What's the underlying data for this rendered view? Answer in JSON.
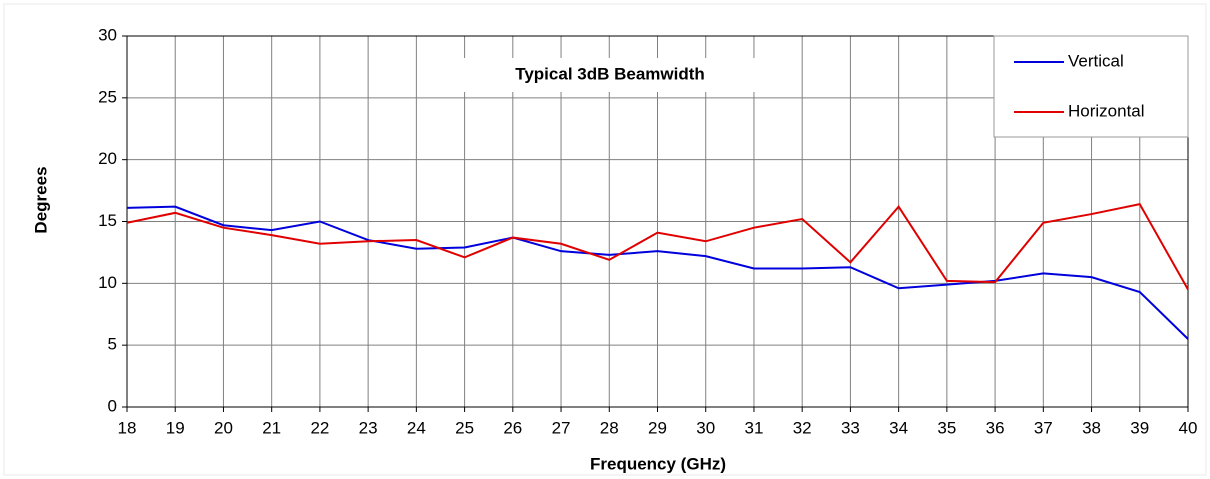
{
  "chart_data": {
    "type": "line",
    "title": "Typical 3dB Beamwidth",
    "x_label": "Frequency (GHz)",
    "y_label": "Degrees",
    "x": [
      18,
      19,
      20,
      21,
      22,
      23,
      24,
      25,
      26,
      27,
      28,
      29,
      30,
      31,
      32,
      33,
      34,
      35,
      36,
      37,
      38,
      39,
      40
    ],
    "series": [
      {
        "name": "Vertical",
        "color": "#0000dd",
        "values": [
          16.1,
          16.2,
          14.7,
          14.3,
          15.0,
          13.5,
          12.8,
          12.9,
          13.7,
          12.6,
          12.3,
          12.6,
          12.2,
          11.2,
          11.2,
          11.3,
          9.6,
          9.9,
          10.2,
          10.8,
          10.5,
          9.3,
          5.5
        ]
      },
      {
        "name": "Horizontal",
        "color": "#e00000",
        "values": [
          14.9,
          15.7,
          14.5,
          13.9,
          13.2,
          13.4,
          13.5,
          12.1,
          13.7,
          13.2,
          11.9,
          14.1,
          13.4,
          14.5,
          15.2,
          11.7,
          16.2,
          10.2,
          10.1,
          14.9,
          15.6,
          16.4,
          9.5
        ]
      }
    ],
    "xlim": [
      18,
      40
    ],
    "xticks": [
      18,
      19,
      20,
      21,
      22,
      23,
      24,
      25,
      26,
      27,
      28,
      29,
      30,
      31,
      32,
      33,
      34,
      35,
      36,
      37,
      38,
      39,
      40
    ],
    "ylim": [
      0,
      30
    ],
    "yticks": [
      0,
      5,
      10,
      15,
      20,
      25,
      30
    ],
    "grid": true,
    "legend": "upper right"
  }
}
